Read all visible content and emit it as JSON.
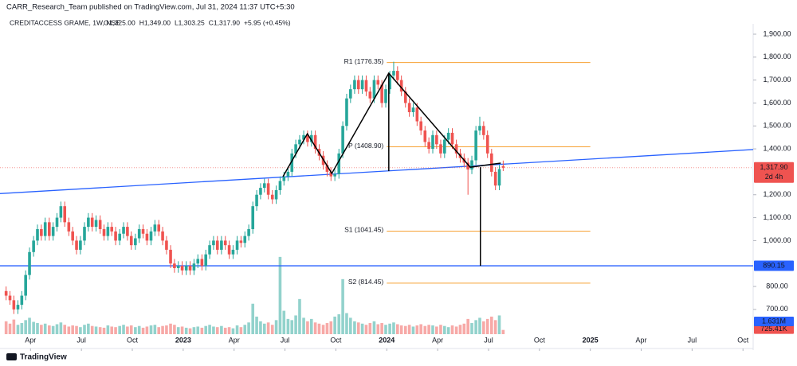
{
  "header": {
    "publisher": "CARR_Research_Team published on TradingView.com, Jul 31, 2024 11:37 UTC+5:30",
    "symbol": "CREDITACCESS GRAME, 1W, NSE",
    "ohlc_labels": [
      "O1,325.00",
      "H1,349.00",
      "L1,303.25",
      "C1,317.90",
      "+5.95 (+0.45%)"
    ],
    "brand": "TradingView"
  },
  "chart_data": {
    "type": "candlestick",
    "up_color": "#26a69a",
    "down_color": "#ef5350",
    "grid": false,
    "xlim": [
      2022.1,
      2025.8
    ],
    "xticks": [
      {
        "value": 2022.25,
        "label": "Apr"
      },
      {
        "value": 2022.5,
        "label": "Jul"
      },
      {
        "value": 2022.75,
        "label": "Oct"
      },
      2023,
      {
        "value": 2023.25,
        "label": "Apr"
      },
      {
        "value": 2023.5,
        "label": "Jul"
      },
      {
        "value": 2023.75,
        "label": "Oct"
      },
      2024,
      {
        "value": 2024.25,
        "label": "Apr"
      },
      {
        "value": 2024.5,
        "label": "Jul"
      },
      {
        "value": 2024.75,
        "label": "Oct"
      },
      2025,
      {
        "value": 2025.25,
        "label": "Apr"
      },
      {
        "value": 2025.5,
        "label": "Jul"
      },
      {
        "value": 2025.75,
        "label": "Oct"
      }
    ],
    "ylim": [
      592,
      1945
    ],
    "yticks": [
      {
        "value": 700,
        "label": "700.00"
      },
      {
        "value": 800,
        "label": "800.00"
      },
      {
        "value": 1000,
        "label": "1,000.00"
      },
      {
        "value": 1100,
        "label": "1,100.00"
      },
      {
        "value": 1200,
        "label": "1,200.00"
      },
      {
        "value": 1400,
        "label": "1,400.00"
      },
      {
        "value": 1500,
        "label": "1,500.00"
      },
      {
        "value": 1600,
        "label": "1,600.00"
      },
      {
        "value": 1700,
        "label": "1,700.00"
      },
      {
        "value": 1800,
        "label": "1,800.00"
      },
      {
        "value": 1900,
        "label": "1,900.00"
      }
    ],
    "x": [
      2022.13,
      2022.149,
      2022.168,
      2022.188,
      2022.207,
      2022.226,
      2022.245,
      2022.265,
      2022.284,
      2022.303,
      2022.322,
      2022.342,
      2022.361,
      2022.38,
      2022.399,
      2022.418,
      2022.438,
      2022.457,
      2022.476,
      2022.495,
      2022.515,
      2022.534,
      2022.553,
      2022.572,
      2022.592,
      2022.611,
      2022.63,
      2022.649,
      2022.668,
      2022.688,
      2022.707,
      2022.726,
      2022.745,
      2022.765,
      2022.784,
      2022.803,
      2022.822,
      2022.842,
      2022.861,
      2022.88,
      2022.899,
      2022.918,
      2022.938,
      2022.957,
      2022.976,
      2022.995,
      2023.015,
      2023.034,
      2023.053,
      2023.072,
      2023.092,
      2023.111,
      2023.13,
      2023.149,
      2023.168,
      2023.188,
      2023.207,
      2023.226,
      2023.245,
      2023.265,
      2023.284,
      2023.303,
      2023.322,
      2023.342,
      2023.361,
      2023.38,
      2023.399,
      2023.418,
      2023.438,
      2023.457,
      2023.476,
      2023.495,
      2023.515,
      2023.534,
      2023.553,
      2023.572,
      2023.592,
      2023.611,
      2023.63,
      2023.649,
      2023.668,
      2023.688,
      2023.707,
      2023.726,
      2023.745,
      2023.765,
      2023.784,
      2023.803,
      2023.822,
      2023.842,
      2023.861,
      2023.88,
      2023.899,
      2023.918,
      2023.938,
      2023.957,
      2023.976,
      2023.995,
      2024.015,
      2024.034,
      2024.053,
      2024.072,
      2024.092,
      2024.111,
      2024.13,
      2024.149,
      2024.168,
      2024.188,
      2024.207,
      2024.226,
      2024.245,
      2024.265,
      2024.284,
      2024.303,
      2024.322,
      2024.342,
      2024.361,
      2024.38,
      2024.399,
      2024.418,
      2024.438,
      2024.457,
      2024.476,
      2024.495,
      2024.515,
      2024.534,
      2024.553,
      2024.572
    ],
    "ohlc": [
      [
        780,
        800,
        740,
        760
      ],
      [
        760,
        780,
        720,
        740
      ],
      [
        740,
        760,
        680,
        700
      ],
      [
        700,
        740,
        680,
        720
      ],
      [
        720,
        780,
        700,
        760
      ],
      [
        760,
        870,
        740,
        850
      ],
      [
        850,
        970,
        830,
        950
      ],
      [
        950,
        1020,
        930,
        1000
      ],
      [
        1000,
        1070,
        980,
        1050
      ],
      [
        1050,
        1070,
        1000,
        1020
      ],
      [
        1020,
        1100,
        1000,
        1080
      ],
      [
        1080,
        1100,
        1000,
        1020
      ],
      [
        1020,
        1080,
        1000,
        1060
      ],
      [
        1060,
        1120,
        1040,
        1100
      ],
      [
        1100,
        1170,
        1080,
        1150
      ],
      [
        1150,
        1170,
        1060,
        1080
      ],
      [
        1080,
        1100,
        1020,
        1040
      ],
      [
        1040,
        1060,
        980,
        1000
      ],
      [
        1000,
        1020,
        940,
        960
      ],
      [
        960,
        1020,
        940,
        1000
      ],
      [
        1000,
        1080,
        980,
        1060
      ],
      [
        1060,
        1120,
        1040,
        1100
      ],
      [
        1100,
        1120,
        1040,
        1060
      ],
      [
        1060,
        1110,
        1040,
        1090
      ],
      [
        1090,
        1110,
        1030,
        1050
      ],
      [
        1050,
        1070,
        1000,
        1020
      ],
      [
        1020,
        1080,
        1000,
        1060
      ],
      [
        1060,
        1080,
        1020,
        1040
      ],
      [
        1040,
        1060,
        980,
        1000
      ],
      [
        1000,
        1050,
        980,
        1030
      ],
      [
        1030,
        1080,
        1010,
        1060
      ],
      [
        1060,
        1080,
        1000,
        1020
      ],
      [
        1020,
        1040,
        960,
        980
      ],
      [
        980,
        1030,
        960,
        1010
      ],
      [
        1010,
        1070,
        990,
        1050
      ],
      [
        1050,
        1070,
        1010,
        1030
      ],
      [
        1030,
        1050,
        980,
        1000
      ],
      [
        1000,
        1060,
        980,
        1040
      ],
      [
        1040,
        1090,
        1020,
        1070
      ],
      [
        1070,
        1090,
        1020,
        1040
      ],
      [
        1040,
        1060,
        980,
        1000
      ],
      [
        1000,
        1020,
        940,
        960
      ],
      [
        960,
        980,
        880,
        900
      ],
      [
        900,
        920,
        860,
        880
      ],
      [
        880,
        910,
        860,
        890
      ],
      [
        890,
        910,
        850,
        870
      ],
      [
        870,
        910,
        850,
        890
      ],
      [
        890,
        910,
        850,
        870
      ],
      [
        870,
        920,
        850,
        900
      ],
      [
        900,
        940,
        880,
        920
      ],
      [
        920,
        940,
        870,
        890
      ],
      [
        890,
        960,
        870,
        940
      ],
      [
        940,
        1000,
        920,
        980
      ],
      [
        980,
        1020,
        960,
        1000
      ],
      [
        1000,
        1020,
        940,
        960
      ],
      [
        960,
        1020,
        940,
        1000
      ],
      [
        1000,
        1020,
        960,
        980
      ],
      [
        980,
        1000,
        920,
        940
      ],
      [
        940,
        980,
        920,
        960
      ],
      [
        960,
        1020,
        940,
        1000
      ],
      [
        1000,
        1020,
        970,
        990
      ],
      [
        990,
        1040,
        970,
        1020
      ],
      [
        1020,
        1070,
        1000,
        1050
      ],
      [
        1050,
        1170,
        1030,
        1150
      ],
      [
        1150,
        1220,
        1130,
        1200
      ],
      [
        1200,
        1250,
        1180,
        1230
      ],
      [
        1230,
        1270,
        1210,
        1250
      ],
      [
        1250,
        1270,
        1180,
        1200
      ],
      [
        1200,
        1220,
        1160,
        1180
      ],
      [
        1180,
        1240,
        1160,
        1220
      ],
      [
        1220,
        1280,
        1200,
        1260
      ],
      [
        1260,
        1300,
        1240,
        1280
      ],
      [
        1280,
        1320,
        1260,
        1300
      ],
      [
        1300,
        1400,
        1280,
        1380
      ],
      [
        1380,
        1440,
        1360,
        1420
      ],
      [
        1420,
        1460,
        1400,
        1440
      ],
      [
        1440,
        1480,
        1420,
        1460
      ],
      [
        1460,
        1480,
        1410,
        1430
      ],
      [
        1430,
        1480,
        1410,
        1460
      ],
      [
        1460,
        1480,
        1380,
        1400
      ],
      [
        1400,
        1420,
        1350,
        1370
      ],
      [
        1370,
        1390,
        1310,
        1330
      ],
      [
        1330,
        1350,
        1280,
        1300
      ],
      [
        1300,
        1320,
        1260,
        1280
      ],
      [
        1280,
        1310,
        1260,
        1290
      ],
      [
        1290,
        1400,
        1270,
        1380
      ],
      [
        1380,
        1520,
        1360,
        1500
      ],
      [
        1500,
        1640,
        1480,
        1620
      ],
      [
        1620,
        1680,
        1600,
        1660
      ],
      [
        1660,
        1720,
        1640,
        1700
      ],
      [
        1700,
        1720,
        1640,
        1660
      ],
      [
        1660,
        1720,
        1640,
        1700
      ],
      [
        1700,
        1720,
        1630,
        1650
      ],
      [
        1650,
        1670,
        1600,
        1620
      ],
      [
        1620,
        1720,
        1600,
        1700
      ],
      [
        1700,
        1720,
        1660,
        1680
      ],
      [
        1680,
        1700,
        1580,
        1600
      ],
      [
        1600,
        1680,
        1580,
        1660
      ],
      [
        1660,
        1740,
        1640,
        1720
      ],
      [
        1720,
        1780,
        1700,
        1740
      ],
      [
        1740,
        1760,
        1680,
        1700
      ],
      [
        1700,
        1720,
        1630,
        1650
      ],
      [
        1650,
        1670,
        1580,
        1600
      ],
      [
        1600,
        1620,
        1540,
        1560
      ],
      [
        1560,
        1600,
        1540,
        1580
      ],
      [
        1580,
        1600,
        1500,
        1520
      ],
      [
        1520,
        1540,
        1460,
        1480
      ],
      [
        1480,
        1500,
        1410,
        1430
      ],
      [
        1430,
        1450,
        1380,
        1400
      ],
      [
        1400,
        1480,
        1380,
        1460
      ],
      [
        1460,
        1480,
        1400,
        1420
      ],
      [
        1420,
        1440,
        1360,
        1380
      ],
      [
        1380,
        1460,
        1360,
        1440
      ],
      [
        1440,
        1490,
        1420,
        1470
      ],
      [
        1470,
        1490,
        1400,
        1420
      ],
      [
        1420,
        1440,
        1360,
        1380
      ],
      [
        1380,
        1400,
        1340,
        1360
      ],
      [
        1360,
        1380,
        1320,
        1340
      ],
      [
        1340,
        1360,
        1200,
        1310
      ],
      [
        1310,
        1370,
        1290,
        1350
      ],
      [
        1350,
        1500,
        1330,
        1480
      ],
      [
        1480,
        1540,
        1460,
        1500
      ],
      [
        1500,
        1520,
        1440,
        1460
      ],
      [
        1460,
        1480,
        1360,
        1380
      ],
      [
        1380,
        1400,
        1280,
        1300
      ],
      [
        1300,
        1320,
        1220,
        1240
      ],
      [
        1240,
        1330,
        1220,
        1311.95
      ],
      [
        1325,
        1349,
        1303.25,
        1317.9
      ]
    ],
    "volume_lim": [
      0,
      53
    ],
    "volume": [
      2.2,
      1.8,
      2.5,
      1.6,
      1.9,
      2.4,
      2.8,
      2.1,
      1.9,
      1.6,
      1.8,
      1.5,
      1.4,
      1.7,
      2.0,
      1.6,
      1.3,
      1.5,
      1.4,
      1.2,
      1.6,
      1.8,
      1.4,
      1.3,
      1.2,
      1.1,
      1.5,
      1.3,
      1.2,
      1.4,
      1.6,
      1.3,
      1.5,
      1.2,
      1.4,
      1.1,
      1.3,
      1.5,
      1.6,
      1.2,
      1.4,
      1.5,
      1.8,
      1.6,
      1.2,
      1.3,
      1.1,
      1.0,
      1.2,
      1.3,
      1.1,
      1.4,
      1.6,
      1.3,
      1.2,
      1.4,
      1.1,
      1.2,
      1.0,
      1.5,
      1.2,
      1.6,
      2.0,
      5.2,
      3.0,
      2.2,
      1.8,
      2.0,
      1.6,
      2.4,
      13.2,
      4.0,
      2.6,
      2.4,
      3.2,
      6.0,
      2.8,
      2.2,
      2.6,
      2.0,
      1.8,
      1.6,
      1.9,
      2.2,
      3.0,
      3.4,
      9.4,
      3.6,
      2.8,
      2.2,
      2.0,
      1.8,
      1.6,
      1.9,
      2.2,
      1.7,
      1.9,
      1.6,
      1.8,
      2.0,
      1.7,
      1.5,
      1.4,
      1.6,
      1.3,
      1.5,
      1.7,
      1.4,
      1.6,
      1.5,
      1.3,
      1.6,
      1.4,
      1.2,
      1.5,
      1.3,
      1.6,
      1.8,
      2.6,
      1.9,
      2.4,
      2.8,
      2.2,
      2.6,
      3.0,
      2.4,
      3.2,
      0.72541
    ],
    "volume_last_label": "725.41K",
    "volume_ma_label": "1.631M",
    "last_price": 1317.9,
    "last_price_label": "1,317.90",
    "countdown": "2d 4h",
    "support_line": 890.15,
    "trendline": [
      [
        2022.1,
        1205
      ],
      [
        2025.8,
        1397
      ]
    ],
    "pattern": [
      [
        2023.49,
        1279
      ],
      [
        2023.61,
        1466
      ],
      [
        2023.73,
        1293
      ],
      [
        2024.01,
        1730
      ],
      [
        2024.41,
        1320
      ],
      [
        2024.56,
        1338
      ]
    ],
    "verticals": [
      [
        2024.01,
        1730,
        1303
      ],
      [
        2024.46,
        1320,
        890.15
      ]
    ],
    "pivot_range": [
      2024.0,
      2025.0
    ],
    "pivots": [
      1776.35,
      1408.9,
      1041.45,
      814.45
    ],
    "pivot_labels": [
      "R1 (1776.35)",
      "P (1408.90)",
      "S1 (1041.45)",
      "S2 (814.45)"
    ]
  }
}
